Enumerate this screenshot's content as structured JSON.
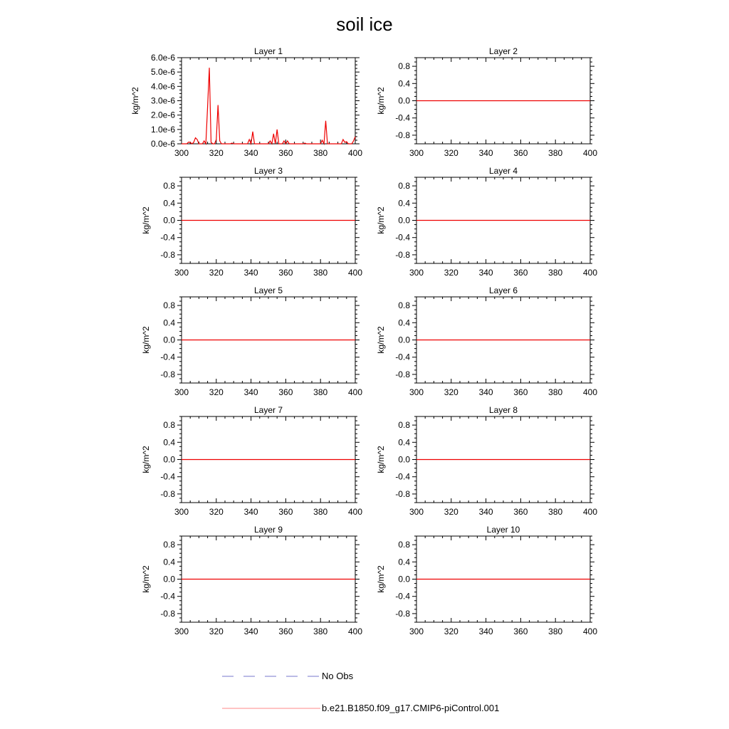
{
  "figure_title": "soil ice",
  "legend": [
    {
      "label": "No Obs",
      "color": "#7777cc",
      "style": "dashed"
    },
    {
      "label": "b.e21.B1850.f09_g17.CMIP6-piControl.001",
      "color": "#ff8888",
      "style": "solid"
    }
  ],
  "chart_data": [
    {
      "type": "line",
      "title": "Layer 1",
      "ylabel": "kg/m^2",
      "xlim": [
        300,
        400
      ],
      "ylim": [
        0,
        6e-06
      ],
      "xticks": [
        300,
        320,
        340,
        360,
        380,
        400
      ],
      "xtick_labels": [
        "300",
        "320",
        "340",
        "360",
        "380",
        "400"
      ],
      "yticks": [
        0,
        1e-06,
        2e-06,
        3e-06,
        4e-06,
        5e-06,
        6e-06
      ],
      "ytick_labels": [
        "0.0e-6",
        "1.0e-6",
        "2.0e-6",
        "3.0e-6",
        "4.0e-6",
        "5.0e-6",
        "6.0e-6"
      ],
      "series": [
        {
          "name": "b.e21.B1850.f09_g17.CMIP6-piControl.001",
          "color": "#ee0000",
          "x": [
            300,
            301,
            302,
            303,
            304,
            305,
            306,
            307,
            308,
            309,
            310,
            311,
            312,
            313,
            314,
            315,
            316,
            317,
            318,
            319,
            320,
            321,
            322,
            323,
            324,
            325,
            326,
            327,
            328,
            329,
            330,
            331,
            332,
            333,
            334,
            335,
            336,
            337,
            338,
            339,
            340,
            341,
            342,
            343,
            344,
            345,
            346,
            347,
            348,
            349,
            350,
            351,
            352,
            353,
            354,
            355,
            356,
            357,
            358,
            359,
            360,
            361,
            362,
            363,
            364,
            365,
            366,
            367,
            368,
            369,
            370,
            371,
            372,
            373,
            374,
            375,
            376,
            377,
            378,
            379,
            380,
            381,
            382,
            383,
            384,
            385,
            386,
            387,
            388,
            389,
            390,
            391,
            392,
            393,
            394,
            395,
            396,
            397,
            398,
            399,
            400
          ],
          "y": [
            0,
            0,
            0,
            0,
            1.2e-07,
            1e-07,
            0,
            1e-07,
            4.2e-07,
            3e-07,
            0,
            0,
            0,
            2e-07,
            0,
            2.6e-06,
            5.3e-06,
            1e-07,
            0,
            0,
            3e-07,
            2.7e-06,
            2e-07,
            0,
            0,
            0,
            0,
            0,
            0,
            5e-08,
            0,
            0,
            0,
            0,
            0,
            0,
            0,
            0,
            0,
            3e-07,
            0,
            8.5e-07,
            0,
            0,
            0,
            0,
            0,
            0,
            0,
            0,
            0,
            2e-07,
            0,
            7e-07,
            0,
            1e-06,
            0,
            0,
            0,
            2e-07,
            0,
            2e-07,
            0,
            0,
            0,
            0,
            0,
            0,
            0,
            0,
            0,
            5e-08,
            0,
            0,
            0,
            0,
            0,
            0,
            0,
            0,
            0,
            2.5e-07,
            0,
            1.6e-06,
            0,
            0,
            0,
            0,
            0,
            0,
            0,
            0,
            0,
            3e-07,
            1e-07,
            1.5e-07,
            0,
            0,
            0,
            2e-07,
            5e-07
          ]
        }
      ]
    },
    {
      "type": "line",
      "title": "Layer 2",
      "ylabel": "kg/m^2",
      "xlim": [
        300,
        400
      ],
      "ylim": [
        -1,
        1
      ],
      "xticks": [
        300,
        320,
        340,
        360,
        380,
        400
      ],
      "xtick_labels": [
        "300",
        "320",
        "340",
        "360",
        "380",
        "400"
      ],
      "yticks": [
        0.8,
        0.4,
        0.0,
        -0.4,
        -0.8
      ],
      "ytick_labels": [
        "0.8",
        "0.4",
        "0.0",
        "-0.4",
        "-0.8"
      ],
      "series": [
        {
          "name": "b.e21.B1850.f09_g17.CMIP6-piControl.001",
          "color": "#ee0000",
          "x": [
            300,
            400
          ],
          "y": [
            0,
            0
          ]
        }
      ]
    },
    {
      "type": "line",
      "title": "Layer 3",
      "ylabel": "kg/m^2",
      "xlim": [
        300,
        400
      ],
      "ylim": [
        -1,
        1
      ],
      "xticks": [
        300,
        320,
        340,
        360,
        380,
        400
      ],
      "xtick_labels": [
        "300",
        "320",
        "340",
        "360",
        "380",
        "400"
      ],
      "yticks": [
        0.8,
        0.4,
        0.0,
        -0.4,
        -0.8
      ],
      "ytick_labels": [
        "0.8",
        "0.4",
        "0.0",
        "-0.4",
        "-0.8"
      ],
      "series": [
        {
          "name": "b.e21.B1850.f09_g17.CMIP6-piControl.001",
          "color": "#ee0000",
          "x": [
            300,
            400
          ],
          "y": [
            0,
            0
          ]
        }
      ]
    },
    {
      "type": "line",
      "title": "Layer 4",
      "ylabel": "kg/m^2",
      "xlim": [
        300,
        400
      ],
      "ylim": [
        -1,
        1
      ],
      "xticks": [
        300,
        320,
        340,
        360,
        380,
        400
      ],
      "xtick_labels": [
        "300",
        "320",
        "340",
        "360",
        "380",
        "400"
      ],
      "yticks": [
        0.8,
        0.4,
        0.0,
        -0.4,
        -0.8
      ],
      "ytick_labels": [
        "0.8",
        "0.4",
        "0.0",
        "-0.4",
        "-0.8"
      ],
      "series": [
        {
          "name": "b.e21.B1850.f09_g17.CMIP6-piControl.001",
          "color": "#ee0000",
          "x": [
            300,
            400
          ],
          "y": [
            0,
            0
          ]
        }
      ]
    },
    {
      "type": "line",
      "title": "Layer 5",
      "ylabel": "kg/m^2",
      "xlim": [
        300,
        400
      ],
      "ylim": [
        -1,
        1
      ],
      "xticks": [
        300,
        320,
        340,
        360,
        380,
        400
      ],
      "xtick_labels": [
        "300",
        "320",
        "340",
        "360",
        "380",
        "400"
      ],
      "yticks": [
        0.8,
        0.4,
        0.0,
        -0.4,
        -0.8
      ],
      "ytick_labels": [
        "0.8",
        "0.4",
        "0.0",
        "-0.4",
        "-0.8"
      ],
      "series": [
        {
          "name": "b.e21.B1850.f09_g17.CMIP6-piControl.001",
          "color": "#ee0000",
          "x": [
            300,
            400
          ],
          "y": [
            0,
            0
          ]
        }
      ]
    },
    {
      "type": "line",
      "title": "Layer 6",
      "ylabel": "kg/m^2",
      "xlim": [
        300,
        400
      ],
      "ylim": [
        -1,
        1
      ],
      "xticks": [
        300,
        320,
        340,
        360,
        380,
        400
      ],
      "xtick_labels": [
        "300",
        "320",
        "340",
        "360",
        "380",
        "400"
      ],
      "yticks": [
        0.8,
        0.4,
        0.0,
        -0.4,
        -0.8
      ],
      "ytick_labels": [
        "0.8",
        "0.4",
        "0.0",
        "-0.4",
        "-0.8"
      ],
      "series": [
        {
          "name": "b.e21.B1850.f09_g17.CMIP6-piControl.001",
          "color": "#ee0000",
          "x": [
            300,
            400
          ],
          "y": [
            0,
            0
          ]
        }
      ]
    },
    {
      "type": "line",
      "title": "Layer 7",
      "ylabel": "kg/m^2",
      "xlim": [
        300,
        400
      ],
      "ylim": [
        -1,
        1
      ],
      "xticks": [
        300,
        320,
        340,
        360,
        380,
        400
      ],
      "xtick_labels": [
        "300",
        "320",
        "340",
        "360",
        "380",
        "400"
      ],
      "yticks": [
        0.8,
        0.4,
        0.0,
        -0.4,
        -0.8
      ],
      "ytick_labels": [
        "0.8",
        "0.4",
        "0.0",
        "-0.4",
        "-0.8"
      ],
      "series": [
        {
          "name": "b.e21.B1850.f09_g17.CMIP6-piControl.001",
          "color": "#ee0000",
          "x": [
            300,
            400
          ],
          "y": [
            0,
            0
          ]
        }
      ]
    },
    {
      "type": "line",
      "title": "Layer 8",
      "ylabel": "kg/m^2",
      "xlim": [
        300,
        400
      ],
      "ylim": [
        -1,
        1
      ],
      "xticks": [
        300,
        320,
        340,
        360,
        380,
        400
      ],
      "xtick_labels": [
        "300",
        "320",
        "340",
        "360",
        "380",
        "400"
      ],
      "yticks": [
        0.8,
        0.4,
        0.0,
        -0.4,
        -0.8
      ],
      "ytick_labels": [
        "0.8",
        "0.4",
        "0.0",
        "-0.4",
        "-0.8"
      ],
      "series": [
        {
          "name": "b.e21.B1850.f09_g17.CMIP6-piControl.001",
          "color": "#ee0000",
          "x": [
            300,
            400
          ],
          "y": [
            0,
            0
          ]
        }
      ]
    },
    {
      "type": "line",
      "title": "Layer 9",
      "ylabel": "kg/m^2",
      "xlim": [
        300,
        400
      ],
      "ylim": [
        -1,
        1
      ],
      "xticks": [
        300,
        320,
        340,
        360,
        380,
        400
      ],
      "xtick_labels": [
        "300",
        "320",
        "340",
        "360",
        "380",
        "400"
      ],
      "yticks": [
        0.8,
        0.4,
        0.0,
        -0.4,
        -0.8
      ],
      "ytick_labels": [
        "0.8",
        "0.4",
        "0.0",
        "-0.4",
        "-0.8"
      ],
      "series": [
        {
          "name": "b.e21.B1850.f09_g17.CMIP6-piControl.001",
          "color": "#ee0000",
          "x": [
            300,
            400
          ],
          "y": [
            0,
            0
          ]
        }
      ]
    },
    {
      "type": "line",
      "title": "Layer 10",
      "ylabel": "kg/m^2",
      "xlim": [
        300,
        400
      ],
      "ylim": [
        -1,
        1
      ],
      "xticks": [
        300,
        320,
        340,
        360,
        380,
        400
      ],
      "xtick_labels": [
        "300",
        "320",
        "340",
        "360",
        "380",
        "400"
      ],
      "yticks": [
        0.8,
        0.4,
        0.0,
        -0.4,
        -0.8
      ],
      "ytick_labels": [
        "0.8",
        "0.4",
        "0.0",
        "-0.4",
        "-0.8"
      ],
      "series": [
        {
          "name": "b.e21.B1850.f09_g17.CMIP6-piControl.001",
          "color": "#ee0000",
          "x": [
            300,
            400
          ],
          "y": [
            0,
            0
          ]
        }
      ]
    }
  ]
}
